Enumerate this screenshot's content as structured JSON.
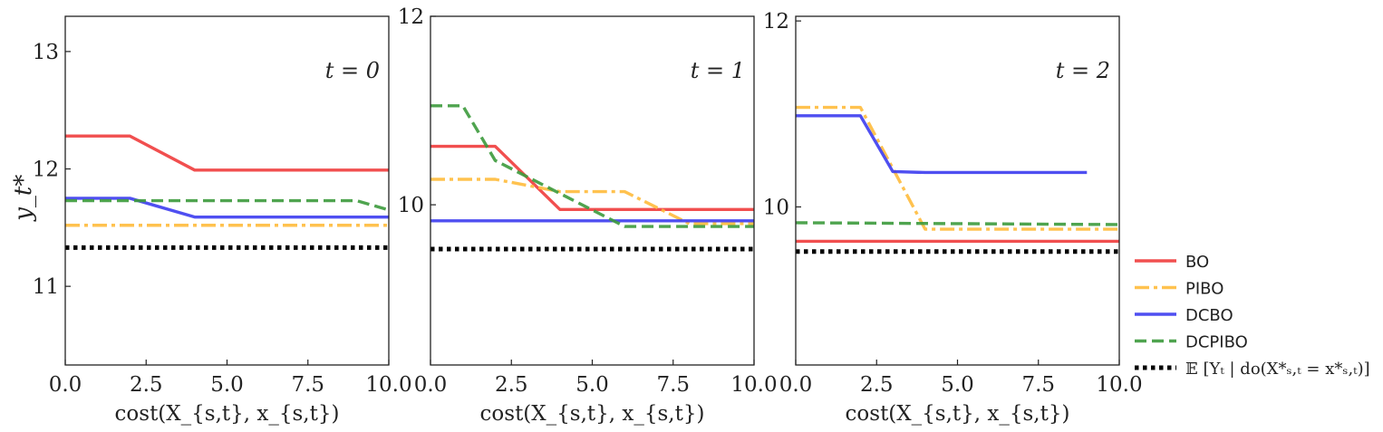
{
  "chart_data": [
    {
      "type": "line",
      "panel_label": "t = 0",
      "xlabel": "cost(X_{s,t}, x_{s,t})",
      "ylabel": "y_t*",
      "xlim": [
        0,
        10
      ],
      "ylim": [
        10.33,
        13.3
      ],
      "xticks": [
        "0.0",
        "2.5",
        "5.0",
        "7.5",
        "10.0"
      ],
      "yticks": [
        "11",
        "12",
        "13"
      ],
      "series": [
        {
          "name": "BO",
          "color": "#f03c3c",
          "dash": "solid",
          "x": [
            0,
            2,
            4,
            10
          ],
          "y": [
            12.28,
            12.28,
            11.99,
            11.99
          ]
        },
        {
          "name": "PIBO",
          "color": "#ffbb3c",
          "dash": "dashdot",
          "x": [
            0,
            10
          ],
          "y": [
            11.52,
            11.52
          ]
        },
        {
          "name": "DCBO",
          "color": "#3c3cf0",
          "dash": "solid",
          "x": [
            0,
            2,
            4,
            10
          ],
          "y": [
            11.75,
            11.75,
            11.59,
            11.59
          ]
        },
        {
          "name": "DCPIBO",
          "color": "#3c9a3c",
          "dash": "dashed",
          "x": [
            0,
            2,
            9,
            10
          ],
          "y": [
            11.73,
            11.73,
            11.73,
            11.65
          ]
        },
        {
          "name": "E[Y_t | do(X*_{s,t} = x*_{s,t})]",
          "color": "#000000",
          "dash": "dotted",
          "x": [
            0,
            10
          ],
          "y": [
            11.33,
            11.33
          ]
        }
      ]
    },
    {
      "type": "line",
      "panel_label": "t = 1",
      "xlabel": "cost(X_{s,t}, x_{s,t})",
      "xlim": [
        0,
        10
      ],
      "ylim": [
        8.3,
        12
      ],
      "xticks": [
        "0.0",
        "2.5",
        "5.0",
        "7.5",
        "10.0"
      ],
      "yticks": [
        "10",
        "12"
      ],
      "series": [
        {
          "name": "BO",
          "color": "#f03c3c",
          "dash": "solid",
          "x": [
            0,
            2,
            4,
            10
          ],
          "y": [
            10.62,
            10.62,
            9.95,
            9.95
          ]
        },
        {
          "name": "PIBO",
          "color": "#ffbb3c",
          "dash": "dashdot",
          "x": [
            0,
            2,
            4,
            6,
            8,
            10
          ],
          "y": [
            10.27,
            10.27,
            10.14,
            10.14,
            9.8,
            9.8
          ]
        },
        {
          "name": "DCBO",
          "color": "#3c3cf0",
          "dash": "solid",
          "x": [
            0,
            10
          ],
          "y": [
            9.83,
            9.83
          ]
        },
        {
          "name": "DCPIBO",
          "color": "#3c9a3c",
          "dash": "dashed",
          "x": [
            0,
            1,
            2,
            6,
            10
          ],
          "y": [
            11.05,
            11.05,
            10.47,
            9.77,
            9.77
          ]
        },
        {
          "name": "E[Y_t | do(X*_{s,t} = x*_{s,t})]",
          "color": "#000000",
          "dash": "dotted",
          "x": [
            0,
            10
          ],
          "y": [
            9.53,
            9.53
          ]
        }
      ]
    },
    {
      "type": "line",
      "panel_label": "t = 2",
      "xlabel": "cost(X_{s,t}, x_{s,t})",
      "xlim": [
        0,
        10
      ],
      "ylim": [
        8.3,
        12.05
      ],
      "xticks": [
        "0.0",
        "2.5",
        "5.0",
        "7.5",
        "10.0"
      ],
      "yticks": [
        "10",
        "12"
      ],
      "series": [
        {
          "name": "BO",
          "color": "#f03c3c",
          "dash": "solid",
          "x": [
            0,
            10
          ],
          "y": [
            9.63,
            9.63
          ]
        },
        {
          "name": "PIBO",
          "color": "#ffbb3c",
          "dash": "dashdot",
          "x": [
            0,
            2,
            4,
            10
          ],
          "y": [
            11.07,
            11.07,
            9.76,
            9.76
          ]
        },
        {
          "name": "DCBO",
          "color": "#3c3cf0",
          "dash": "solid",
          "x": [
            0,
            2,
            3,
            4,
            9
          ],
          "y": [
            10.98,
            10.98,
            10.38,
            10.37,
            10.37
          ]
        },
        {
          "name": "DCPIBO",
          "color": "#3c9a3c",
          "dash": "dashed",
          "x": [
            0,
            10
          ],
          "y": [
            9.83,
            9.81
          ]
        },
        {
          "name": "E[Y_t | do(X*_{s,t} = x*_{s,t})]",
          "color": "#000000",
          "dash": "dotted",
          "x": [
            0,
            10
          ],
          "y": [
            9.52,
            9.52
          ]
        }
      ]
    }
  ],
  "legend": {
    "placement": "right",
    "entries": [
      {
        "label": "BO",
        "color": "#f03c3c",
        "dash": "solid"
      },
      {
        "label": "PIBO",
        "color": "#ffbb3c",
        "dash": "dashdot"
      },
      {
        "label": "DCBO",
        "color": "#3c3cf0",
        "dash": "solid"
      },
      {
        "label": "DCPIBO",
        "color": "#3c9a3c",
        "dash": "dashed"
      },
      {
        "label": "𝔼 [Yₜ | do(X*ₛ,ₜ = x*ₛ,ₜ)]",
        "color": "#000000",
        "dash": "dotted"
      }
    ]
  }
}
